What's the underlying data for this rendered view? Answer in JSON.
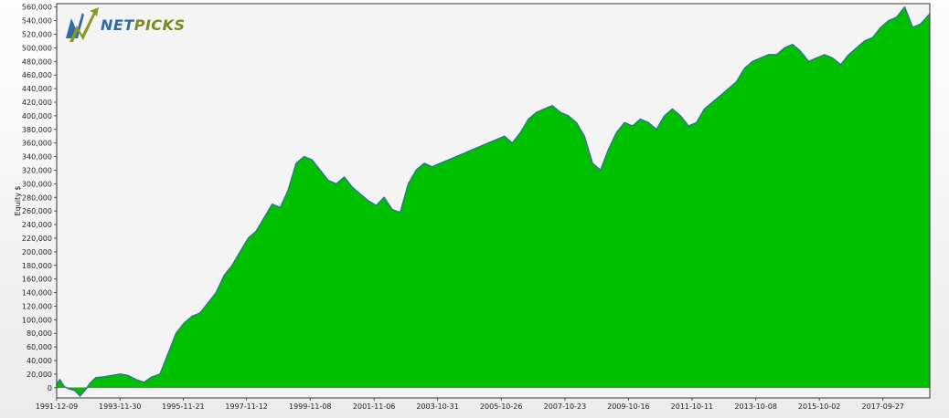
{
  "logo": {
    "prefix": "NET",
    "suffix": "PICKS"
  },
  "colors": {
    "fill": "#00c000",
    "line": "#3a6e98",
    "axis": "#333333"
  },
  "chart_data": {
    "type": "area",
    "ylabel": "Equity $",
    "xlabel": "",
    "ylim": [
      -15000,
      565000
    ],
    "yticks": [
      0,
      20000,
      40000,
      60000,
      80000,
      100000,
      120000,
      140000,
      160000,
      180000,
      200000,
      220000,
      240000,
      260000,
      280000,
      300000,
      320000,
      340000,
      360000,
      380000,
      400000,
      420000,
      440000,
      460000,
      480000,
      500000,
      520000,
      540000,
      560000
    ],
    "ytick_labels": [
      "0",
      "20,000",
      "40,000",
      "60,000",
      "80,000",
      "100,000",
      "120,000",
      "140,000",
      "160,000",
      "180,000",
      "200,000",
      "220,000",
      "240,000",
      "260,000",
      "280,000",
      "300,000",
      "320,000",
      "340,000",
      "360,000",
      "380,000",
      "400,000",
      "420,000",
      "440,000",
      "460,000",
      "480,000",
      "500,000",
      "520,000",
      "540,000",
      "560,000"
    ],
    "xlim": [
      "1991-12-09",
      "2019-03-15"
    ],
    "xtick_labels": [
      "1991-12-09",
      "1993-11-30",
      "1995-11-21",
      "1997-11-12",
      "1999-11-08",
      "2001-11-06",
      "2003-10-31",
      "2005-10-26",
      "2007-10-23",
      "2009-10-16",
      "2011-10-11",
      "2013-10-08",
      "2015-10-02",
      "2017-09-27"
    ],
    "grid": false,
    "series": [
      {
        "x": [
          "1991-12-09",
          "1992-01-15",
          "1992-03-01",
          "1992-05-01",
          "1992-07-01",
          "1992-09-01",
          "1992-11-01",
          "1993-01-01",
          "1993-03-01",
          "1993-06-01",
          "1993-09-01",
          "1993-12-01",
          "1994-03-01",
          "1994-06-01",
          "1994-09-01",
          "1994-12-01",
          "1995-03-01",
          "1995-06-01",
          "1995-09-01",
          "1995-12-01",
          "1996-03-01",
          "1996-06-01",
          "1996-09-01",
          "1996-12-01",
          "1997-03-01",
          "1997-06-01",
          "1997-09-01",
          "1997-12-01",
          "1998-03-01",
          "1998-06-01",
          "1998-09-01",
          "1998-12-01",
          "1999-03-01",
          "1999-06-01",
          "1999-09-01",
          "1999-12-01",
          "2000-03-01",
          "2000-06-01",
          "2000-09-01",
          "2000-12-01",
          "2001-03-01",
          "2001-06-01",
          "2001-09-01",
          "2001-12-01",
          "2002-03-01",
          "2002-06-01",
          "2002-09-01",
          "2002-12-01",
          "2003-03-01",
          "2003-06-01",
          "2003-09-01",
          "2003-12-01",
          "2004-03-01",
          "2004-06-01",
          "2004-09-01",
          "2004-12-01",
          "2005-03-01",
          "2005-06-01",
          "2005-09-01",
          "2005-12-01",
          "2006-03-01",
          "2006-06-01",
          "2006-09-01",
          "2006-12-01",
          "2007-03-01",
          "2007-06-01",
          "2007-09-01",
          "2007-12-01",
          "2008-03-01",
          "2008-06-01",
          "2008-09-01",
          "2008-12-01",
          "2009-03-01",
          "2009-06-01",
          "2009-09-01",
          "2009-12-01",
          "2010-03-01",
          "2010-06-01",
          "2010-09-01",
          "2010-12-01",
          "2011-03-01",
          "2011-06-01",
          "2011-09-01",
          "2011-12-01",
          "2012-03-01",
          "2012-06-01",
          "2012-09-01",
          "2012-12-01",
          "2013-03-01",
          "2013-06-01",
          "2013-09-01",
          "2013-12-01",
          "2014-03-01",
          "2014-06-01",
          "2014-09-01",
          "2014-12-01",
          "2015-03-01",
          "2015-06-01",
          "2015-09-01",
          "2015-12-01",
          "2016-03-01",
          "2016-06-01",
          "2016-09-01",
          "2016-12-01",
          "2017-03-01",
          "2017-06-01",
          "2017-09-01",
          "2017-12-01",
          "2018-03-01",
          "2018-06-01",
          "2018-09-01",
          "2018-12-01",
          "2019-03-15"
        ],
        "values": [
          5000,
          12000,
          2000,
          -2000,
          -4000,
          -12000,
          -3000,
          8000,
          15000,
          16000,
          18000,
          20000,
          18000,
          12000,
          8000,
          16000,
          20000,
          50000,
          80000,
          95000,
          105000,
          110000,
          125000,
          140000,
          165000,
          180000,
          200000,
          220000,
          230000,
          250000,
          270000,
          265000,
          290000,
          330000,
          340000,
          335000,
          320000,
          305000,
          300000,
          310000,
          295000,
          285000,
          275000,
          268000,
          280000,
          262000,
          258000,
          300000,
          320000,
          330000,
          325000,
          330000,
          335000,
          340000,
          345000,
          350000,
          355000,
          360000,
          365000,
          370000,
          360000,
          375000,
          395000,
          405000,
          410000,
          415000,
          405000,
          400000,
          390000,
          370000,
          330000,
          320000,
          350000,
          375000,
          390000,
          385000,
          395000,
          390000,
          380000,
          400000,
          410000,
          400000,
          385000,
          390000,
          410000,
          420000,
          430000,
          440000,
          450000,
          470000,
          480000,
          485000,
          490000,
          490000,
          500000,
          505000,
          495000,
          480000,
          485000,
          490000,
          485000,
          475000,
          490000,
          500000,
          510000,
          515000,
          530000,
          540000,
          545000,
          560000,
          530000,
          535000,
          550000
        ]
      }
    ]
  }
}
